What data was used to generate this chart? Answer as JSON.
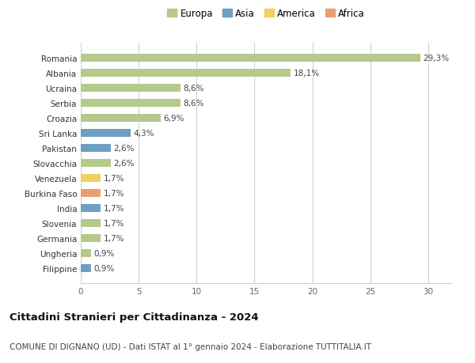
{
  "categories": [
    "Romania",
    "Albania",
    "Ucraina",
    "Serbia",
    "Croazia",
    "Sri Lanka",
    "Pakistan",
    "Slovacchia",
    "Venezuela",
    "Burkina Faso",
    "India",
    "Slovenia",
    "Germania",
    "Ungheria",
    "Filippine"
  ],
  "values": [
    29.3,
    18.1,
    8.6,
    8.6,
    6.9,
    4.3,
    2.6,
    2.6,
    1.7,
    1.7,
    1.7,
    1.7,
    1.7,
    0.9,
    0.9
  ],
  "labels": [
    "29,3%",
    "18,1%",
    "8,6%",
    "8,6%",
    "6,9%",
    "4,3%",
    "2,6%",
    "2,6%",
    "1,7%",
    "1,7%",
    "1,7%",
    "1,7%",
    "1,7%",
    "0,9%",
    "0,9%"
  ],
  "continents": [
    "Europa",
    "Europa",
    "Europa",
    "Europa",
    "Europa",
    "Asia",
    "Asia",
    "Europa",
    "America",
    "Africa",
    "Asia",
    "Europa",
    "Europa",
    "Europa",
    "Asia"
  ],
  "continent_colors": {
    "Europa": "#b5c98a",
    "Asia": "#6e9ec2",
    "America": "#f0d060",
    "Africa": "#e8a070"
  },
  "legend_entries": [
    "Europa",
    "Asia",
    "America",
    "Africa"
  ],
  "title": "Cittadini Stranieri per Cittadinanza - 2024",
  "subtitle": "COMUNE DI DIGNANO (UD) - Dati ISTAT al 1° gennaio 2024 - Elaborazione TUTTITALIA.IT",
  "xlim": [
    0,
    32
  ],
  "xticks": [
    0,
    5,
    10,
    15,
    20,
    25,
    30
  ],
  "background_color": "#ffffff",
  "grid_color": "#d0d0d0",
  "bar_height": 0.55,
  "label_fontsize": 7.5,
  "title_fontsize": 9.5,
  "subtitle_fontsize": 7.5,
  "tick_fontsize": 7.5,
  "legend_fontsize": 8.5
}
